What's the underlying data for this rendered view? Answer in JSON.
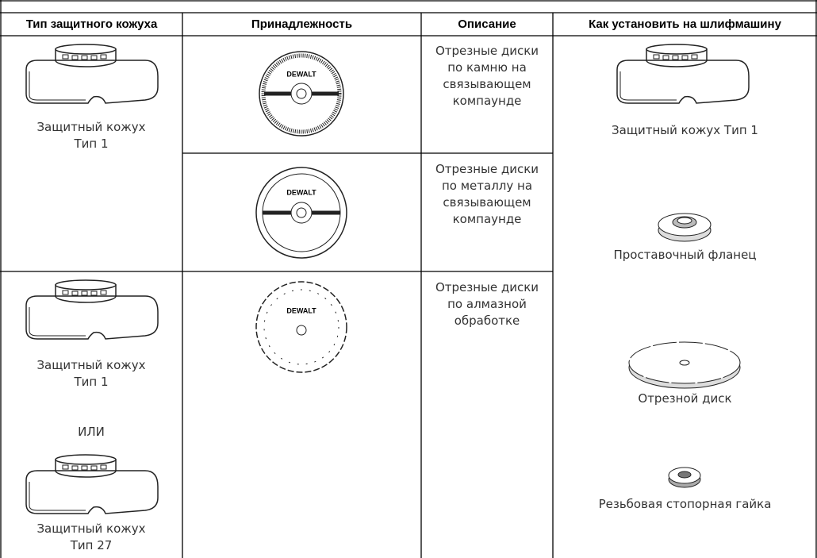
{
  "header": {
    "columns": [
      "Тип защитного кожуха",
      "Принадлежность",
      "Описание",
      "Как установить на шлифмашину"
    ]
  },
  "rows": [
    {
      "guard": [
        "Защитный кожух Тип 1"
      ],
      "accessory_logo": "DEWALT",
      "description": "Отрезные диски по камню на связывающем компаунде"
    },
    {
      "accessory_logo": "DEWALT",
      "description": "Отрезные диски по металлу на связывающем компаунде"
    },
    {
      "guard": [
        "Защитный кожух Тип 1",
        "ИЛИ",
        "Защитный кожух Тип 27"
      ],
      "accessory_logo": "DEWALT",
      "description": "Отрезные диски по алмазной обработке"
    }
  ],
  "installation": [
    "Защитный кожух Тип 1",
    "Проставочный фланец",
    "Отрезной диск",
    "Резьбовая стопорная гайка"
  ]
}
